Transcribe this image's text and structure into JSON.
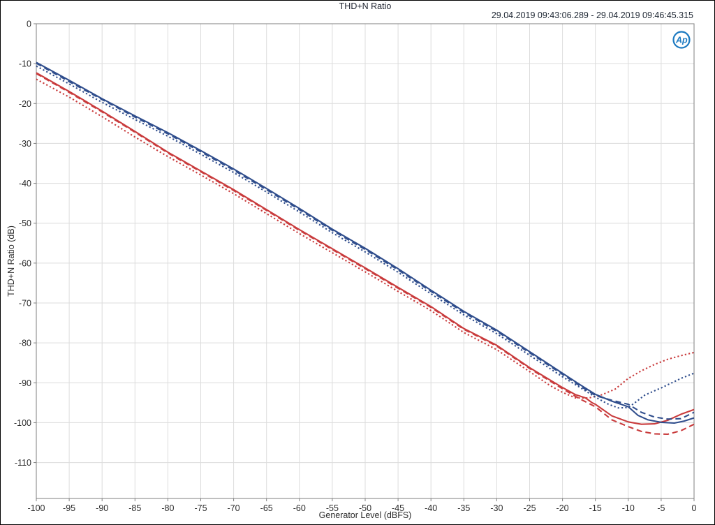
{
  "header": {
    "title": "THD+N Ratio",
    "timestamp": "29.04.2019 09:43:06.289 - 29.04.2019 09:46:45.315"
  },
  "logo": {
    "text": "Ap",
    "color": "#1d7ac1"
  },
  "colors": {
    "blue_series": "#2f4d8c",
    "red_series": "#c93b3c",
    "grid": "#dcdcdc",
    "plot_border": "#7f7f7f",
    "tick_text": "#2c2c2c",
    "background": "#ffffff"
  },
  "chart_data": {
    "type": "line",
    "title": "THD+N Ratio",
    "xlabel": "Generator Level (dBFS)",
    "ylabel": "THD+N Ratio  (dB)",
    "xlim": [
      -100,
      0
    ],
    "ylim": [
      -119,
      0
    ],
    "x_ticks": [
      -100,
      -95,
      -90,
      -85,
      -80,
      -75,
      -70,
      -65,
      -60,
      -55,
      -50,
      -45,
      -40,
      -35,
      -30,
      -25,
      -20,
      -15,
      -10,
      -5,
      0
    ],
    "y_ticks": [
      0,
      -10,
      -20,
      -30,
      -40,
      -50,
      -60,
      -70,
      -80,
      -90,
      -100,
      -110
    ],
    "grid": true,
    "legend": "none",
    "series": [
      {
        "name": "red dotted",
        "color": "#c93b3c",
        "style": "dotted",
        "points": [
          [
            -100,
            -13.9
          ],
          [
            -95,
            -18.4
          ],
          [
            -90,
            -23.3
          ],
          [
            -85,
            -28.4
          ],
          [
            -80,
            -33.3
          ],
          [
            -75,
            -37.9
          ],
          [
            -70,
            -42.6
          ],
          [
            -65,
            -47.6
          ],
          [
            -60,
            -52.6
          ],
          [
            -55,
            -57.4
          ],
          [
            -50,
            -62.2
          ],
          [
            -45,
            -67.1
          ],
          [
            -40,
            -71.9
          ],
          [
            -35,
            -77.4
          ],
          [
            -30,
            -81.7
          ],
          [
            -25,
            -87.2
          ],
          [
            -22,
            -90.6
          ],
          [
            -20,
            -92.4
          ],
          [
            -18,
            -93.8
          ],
          [
            -16,
            -93.8
          ],
          [
            -14,
            -93.0
          ],
          [
            -12,
            -91.6
          ],
          [
            -10,
            -88.9
          ],
          [
            -8,
            -87.0
          ],
          [
            -6,
            -85.4
          ],
          [
            -4,
            -84.1
          ],
          [
            -2,
            -83.2
          ],
          [
            0,
            -82.4
          ]
        ]
      },
      {
        "name": "red dashed",
        "color": "#c93b3c",
        "style": "dashed",
        "points": [
          [
            -100,
            -12.5
          ],
          [
            -95,
            -17.2
          ],
          [
            -90,
            -22.1
          ],
          [
            -85,
            -27.2
          ],
          [
            -80,
            -32.4
          ],
          [
            -75,
            -37.1
          ],
          [
            -70,
            -41.8
          ],
          [
            -65,
            -46.8
          ],
          [
            -60,
            -51.8
          ],
          [
            -55,
            -56.6
          ],
          [
            -50,
            -61.4
          ],
          [
            -45,
            -66.3
          ],
          [
            -40,
            -71.1
          ],
          [
            -35,
            -76.6
          ],
          [
            -30,
            -80.8
          ],
          [
            -25,
            -86.4
          ],
          [
            -20,
            -91.5
          ],
          [
            -17.5,
            -93.9
          ],
          [
            -15,
            -96.0
          ],
          [
            -12.5,
            -99.3
          ],
          [
            -10,
            -101.0
          ],
          [
            -8,
            -102.2
          ],
          [
            -6,
            -102.8
          ],
          [
            -4,
            -102.9
          ],
          [
            -2,
            -102.0
          ],
          [
            0,
            -100.4
          ]
        ]
      },
      {
        "name": "red solid",
        "color": "#c93b3c",
        "style": "solid",
        "points": [
          [
            -100,
            -12.3
          ],
          [
            -95,
            -17.0
          ],
          [
            -90,
            -21.9
          ],
          [
            -85,
            -27.0
          ],
          [
            -80,
            -32.2
          ],
          [
            -75,
            -36.9
          ],
          [
            -70,
            -41.6
          ],
          [
            -65,
            -46.6
          ],
          [
            -60,
            -51.6
          ],
          [
            -55,
            -56.4
          ],
          [
            -50,
            -61.2
          ],
          [
            -45,
            -66.1
          ],
          [
            -40,
            -70.9
          ],
          [
            -35,
            -76.4
          ],
          [
            -30,
            -80.6
          ],
          [
            -25,
            -86.2
          ],
          [
            -20,
            -91.2
          ],
          [
            -18,
            -93.0
          ],
          [
            -16.5,
            -93.8
          ],
          [
            -15.5,
            -95.0
          ],
          [
            -15,
            -95.4
          ],
          [
            -12.5,
            -98.3
          ],
          [
            -10,
            -99.8
          ],
          [
            -8,
            -100.4
          ],
          [
            -6,
            -100.3
          ],
          [
            -4,
            -99.4
          ],
          [
            -2,
            -97.9
          ],
          [
            0,
            -96.7
          ]
        ]
      },
      {
        "name": "blue dotted",
        "color": "#2f4d8c",
        "style": "dotted",
        "points": [
          [
            -100,
            -10.6
          ],
          [
            -95,
            -15.1
          ],
          [
            -90,
            -19.7
          ],
          [
            -85,
            -24.0
          ],
          [
            -80,
            -28.2
          ],
          [
            -75,
            -32.7
          ],
          [
            -70,
            -37.3
          ],
          [
            -65,
            -42.2
          ],
          [
            -60,
            -47.2
          ],
          [
            -55,
            -52.4
          ],
          [
            -50,
            -57.2
          ],
          [
            -45,
            -62.3
          ],
          [
            -40,
            -67.7
          ],
          [
            -35,
            -73.0
          ],
          [
            -30,
            -77.7
          ],
          [
            -25,
            -83.1
          ],
          [
            -20,
            -88.5
          ],
          [
            -17.5,
            -91.0
          ],
          [
            -15,
            -93.6
          ],
          [
            -13,
            -95.4
          ],
          [
            -11.5,
            -96.3
          ],
          [
            -10,
            -96.2
          ],
          [
            -9,
            -95.0
          ],
          [
            -7.5,
            -93.1
          ],
          [
            -6,
            -92.0
          ],
          [
            -5,
            -91.3
          ],
          [
            -3.5,
            -90.1
          ],
          [
            -2,
            -88.9
          ],
          [
            0,
            -87.6
          ]
        ]
      },
      {
        "name": "blue dashed",
        "color": "#2f4d8c",
        "style": "dashed",
        "points": [
          [
            -100,
            -9.9
          ],
          [
            -95,
            -14.5
          ],
          [
            -90,
            -19.0
          ],
          [
            -85,
            -23.4
          ],
          [
            -80,
            -27.6
          ],
          [
            -75,
            -32.1
          ],
          [
            -70,
            -36.7
          ],
          [
            -65,
            -41.6
          ],
          [
            -60,
            -46.6
          ],
          [
            -55,
            -51.8
          ],
          [
            -50,
            -56.6
          ],
          [
            -45,
            -61.7
          ],
          [
            -40,
            -67.1
          ],
          [
            -35,
            -72.4
          ],
          [
            -30,
            -77.1
          ],
          [
            -25,
            -82.5
          ],
          [
            -20,
            -87.9
          ],
          [
            -17.5,
            -90.6
          ],
          [
            -15,
            -93.2
          ],
          [
            -12.5,
            -94.4
          ],
          [
            -10,
            -95.4
          ],
          [
            -8,
            -97.4
          ],
          [
            -6,
            -98.6
          ],
          [
            -4,
            -99.1
          ],
          [
            -2,
            -99.0
          ],
          [
            0,
            -97.4
          ]
        ]
      },
      {
        "name": "blue solid",
        "color": "#2f4d8c",
        "style": "solid",
        "points": [
          [
            -100,
            -9.7
          ],
          [
            -95,
            -14.2
          ],
          [
            -90,
            -18.8
          ],
          [
            -85,
            -23.1
          ],
          [
            -80,
            -27.3
          ],
          [
            -75,
            -31.8
          ],
          [
            -70,
            -36.4
          ],
          [
            -65,
            -41.3
          ],
          [
            -60,
            -46.3
          ],
          [
            -55,
            -51.5
          ],
          [
            -50,
            -56.3
          ],
          [
            -45,
            -61.4
          ],
          [
            -40,
            -66.8
          ],
          [
            -35,
            -72.1
          ],
          [
            -30,
            -76.8
          ],
          [
            -25,
            -82.2
          ],
          [
            -20,
            -87.6
          ],
          [
            -17.5,
            -90.3
          ],
          [
            -15,
            -92.9
          ],
          [
            -12.5,
            -94.6
          ],
          [
            -10,
            -96.0
          ],
          [
            -8.5,
            -98.2
          ],
          [
            -7,
            -99.3
          ],
          [
            -5,
            -99.9
          ],
          [
            -3,
            -100.1
          ],
          [
            -1.5,
            -99.6
          ],
          [
            0,
            -98.8
          ]
        ]
      }
    ]
  }
}
